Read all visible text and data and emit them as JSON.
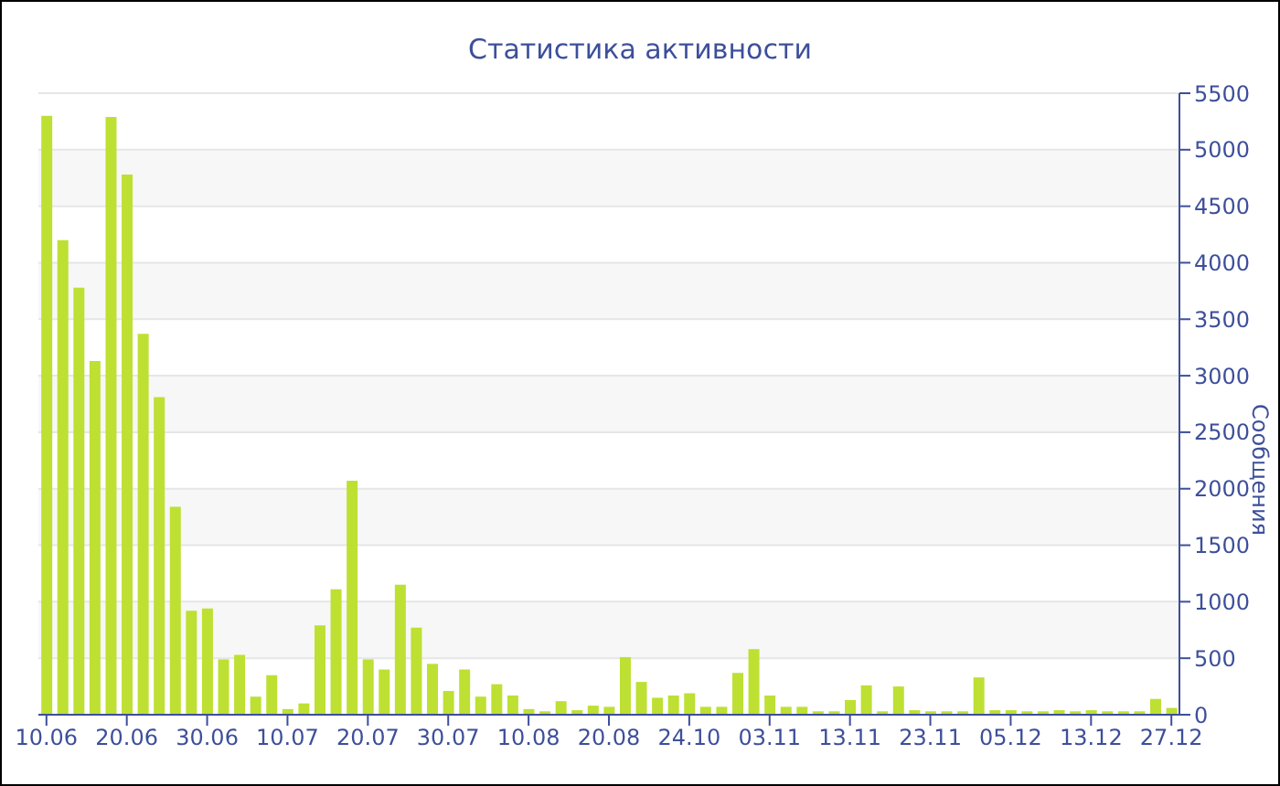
{
  "chart_data": {
    "type": "bar",
    "title": "Статистика активности",
    "ylabel": "Сообщения",
    "categories": [
      "10.06",
      null,
      null,
      null,
      null,
      "20.06",
      null,
      null,
      null,
      null,
      "30.06",
      null,
      null,
      null,
      null,
      "10.07",
      null,
      null,
      null,
      null,
      "20.07",
      null,
      null,
      null,
      null,
      "30.07",
      null,
      null,
      null,
      null,
      "10.08",
      null,
      null,
      null,
      null,
      "20.08",
      null,
      null,
      null,
      null,
      "24.10",
      null,
      null,
      null,
      null,
      "03.11",
      null,
      null,
      null,
      null,
      "13.11",
      null,
      null,
      null,
      null,
      "23.11",
      null,
      null,
      null,
      null,
      "05.12",
      null,
      null,
      null,
      null,
      "13.12",
      null,
      null,
      null,
      null,
      "27.12"
    ],
    "values": [
      5300,
      4200,
      3780,
      3130,
      5290,
      4780,
      3370,
      2810,
      1840,
      920,
      940,
      490,
      530,
      160,
      350,
      50,
      100,
      790,
      1110,
      2070,
      490,
      400,
      1150,
      770,
      450,
      210,
      400,
      160,
      270,
      170,
      50,
      30,
      120,
      40,
      80,
      70,
      510,
      290,
      150,
      170,
      190,
      70,
      70,
      370,
      580,
      170,
      70,
      70,
      30,
      30,
      130,
      260,
      30,
      250,
      40,
      30,
      30,
      30,
      330,
      40,
      40,
      30,
      30,
      40,
      30,
      40,
      30,
      30,
      30,
      140,
      60
    ],
    "color": "#bde033",
    "ylim": [
      0,
      5500
    ],
    "yticks": [
      0,
      500,
      1000,
      1500,
      2000,
      2500,
      3000,
      3500,
      4000,
      4500,
      5000,
      5500
    ],
    "grid": "y"
  }
}
